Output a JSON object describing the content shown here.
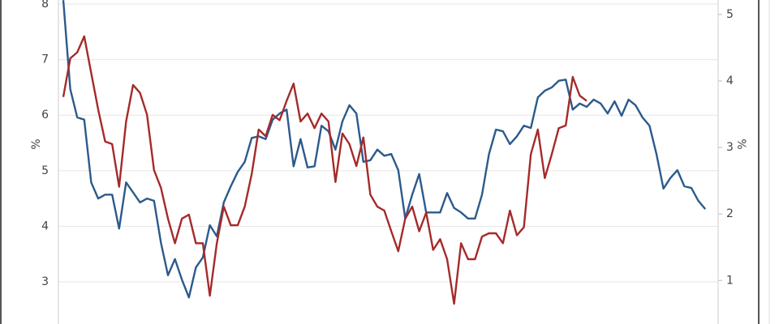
{
  "chart_data": {
    "type": "line",
    "y_label": "%",
    "y2_label": "%",
    "ylim": [
      2.2,
      8.1
    ],
    "yticks": [
      3,
      4,
      5,
      6,
      7,
      8
    ],
    "y2lim": [
      0.31,
      5.24
    ],
    "y2ticks": [
      1,
      2,
      3,
      4,
      5
    ],
    "grid": true,
    "series": [
      {
        "color": "#2c5a8c",
        "values": [
          8.07,
          6.47,
          5.96,
          5.92,
          4.79,
          4.5,
          4.57,
          4.57,
          3.96,
          4.79,
          4.61,
          4.43,
          4.5,
          4.46,
          3.7,
          3.12,
          3.41,
          3.04,
          2.72,
          3.26,
          3.44,
          4.02,
          3.82,
          4.43,
          4.72,
          4.98,
          5.16,
          5.59,
          5.62,
          5.57,
          5.92,
          6.03,
          6.1,
          5.08,
          5.57,
          5.06,
          5.08,
          5.81,
          5.71,
          5.38,
          5.89,
          6.18,
          6.03,
          5.16,
          5.19,
          5.38,
          5.27,
          5.3,
          5.01,
          4.14,
          4.57,
          4.94,
          4.25,
          4.25,
          4.25,
          4.6,
          4.33,
          4.25,
          4.14,
          4.14,
          4.57,
          5.3,
          5.74,
          5.71,
          5.48,
          5.62,
          5.81,
          5.77,
          6.32,
          6.44,
          6.5,
          6.62,
          6.64,
          6.1,
          6.21,
          6.15,
          6.28,
          6.21,
          6.03,
          6.25,
          5.99,
          6.28,
          6.18,
          5.96,
          5.81,
          5.3,
          4.68,
          4.87,
          5.01,
          4.72,
          4.69,
          4.46,
          4.31
        ]
      },
      {
        "color": "#a52a2a",
        "axis": "y2",
        "values": [
          3.76,
          4.34,
          4.43,
          4.67,
          4.12,
          3.57,
          3.09,
          3.05,
          2.41,
          3.39,
          3.94,
          3.82,
          3.49,
          2.66,
          2.39,
          1.93,
          1.56,
          1.93,
          1.99,
          1.56,
          1.56,
          0.77,
          1.56,
          2.11,
          1.83,
          1.83,
          2.11,
          2.6,
          3.27,
          3.17,
          3.49,
          3.41,
          3.7,
          3.96,
          3.39,
          3.51,
          3.29,
          3.51,
          3.39,
          2.48,
          3.21,
          3.05,
          2.72,
          3.15,
          2.29,
          2.11,
          2.05,
          1.74,
          1.44,
          1.93,
          2.11,
          1.74,
          2.02,
          1.46,
          1.62,
          1.32,
          0.65,
          1.56,
          1.32,
          1.32,
          1.66,
          1.71,
          1.71,
          1.56,
          2.05,
          1.68,
          1.8,
          2.9,
          3.27,
          2.54,
          2.9,
          3.29,
          3.33,
          4.06,
          3.78,
          3.7
        ]
      }
    ]
  }
}
